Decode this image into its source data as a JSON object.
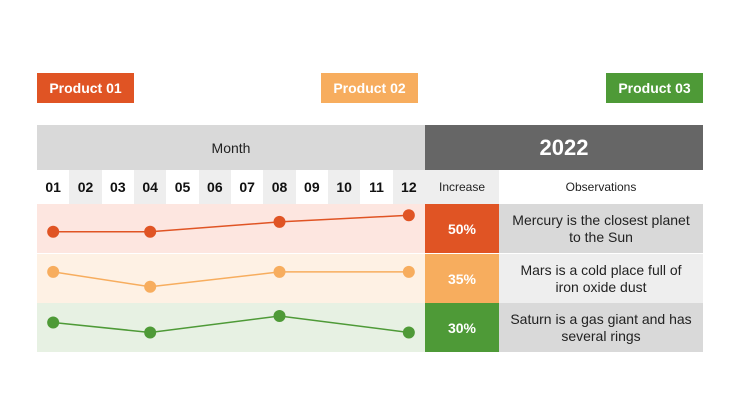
{
  "products": [
    {
      "label": "Product 01",
      "color": "#e05424"
    },
    {
      "label": "Product 02",
      "color": "#f7ad5e"
    },
    {
      "label": "Product 03",
      "color": "#4e9a37"
    }
  ],
  "table": {
    "month_header": "Month",
    "year_header": "2022",
    "increase_header": "Increase",
    "observations_header": "Observations",
    "months": [
      "01",
      "02",
      "03",
      "04",
      "05",
      "06",
      "07",
      "08",
      "09",
      "10",
      "11",
      "12"
    ]
  },
  "rows": [
    {
      "increase": "50%",
      "observation": "Mercury is the closest planet to the Sun"
    },
    {
      "increase": "35%",
      "observation": "Mars is a cold place full of iron oxide dust"
    },
    {
      "increase": "30%",
      "observation": "Saturn is a gas giant and has several rings"
    }
  ],
  "chart_data": {
    "type": "line",
    "categories": [
      "01",
      "02",
      "03",
      "04",
      "05",
      "06",
      "07",
      "08",
      "09",
      "10",
      "11",
      "12"
    ],
    "series": [
      {
        "name": "Product 01",
        "color": "#e05424",
        "points": [
          {
            "x": "01",
            "y": 0.4
          },
          {
            "x": "04",
            "y": 0.4
          },
          {
            "x": "08",
            "y": 0.7
          },
          {
            "x": "12",
            "y": 0.9
          }
        ]
      },
      {
        "name": "Product 02",
        "color": "#f7ad5e",
        "points": [
          {
            "x": "01",
            "y": 0.7
          },
          {
            "x": "04",
            "y": 0.25
          },
          {
            "x": "08",
            "y": 0.7
          },
          {
            "x": "12",
            "y": 0.7
          }
        ]
      },
      {
        "name": "Product 03",
        "color": "#4e9a37",
        "points": [
          {
            "x": "01",
            "y": 0.65
          },
          {
            "x": "04",
            "y": 0.35
          },
          {
            "x": "08",
            "y": 0.85
          },
          {
            "x": "12",
            "y": 0.35
          }
        ]
      }
    ],
    "ylim": [
      0,
      1
    ],
    "grid": false
  }
}
